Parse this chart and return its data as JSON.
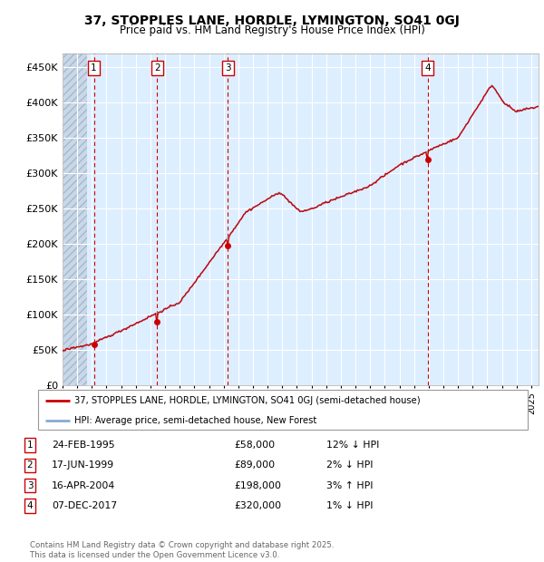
{
  "title1": "37, STOPPLES LANE, HORDLE, LYMINGTON, SO41 0GJ",
  "title2": "Price paid vs. HM Land Registry's House Price Index (HPI)",
  "ylim": [
    0,
    470000
  ],
  "yticks": [
    0,
    50000,
    100000,
    150000,
    200000,
    250000,
    300000,
    350000,
    400000,
    450000
  ],
  "ytick_labels": [
    "£0",
    "£50K",
    "£100K",
    "£150K",
    "£200K",
    "£250K",
    "£300K",
    "£350K",
    "£400K",
    "£450K"
  ],
  "xlim_start": 1993.0,
  "xlim_end": 2025.5,
  "sale_dates": [
    1995.14,
    1999.46,
    2004.29,
    2017.93
  ],
  "sale_prices": [
    58000,
    89000,
    198000,
    320000
  ],
  "sale_labels": [
    "1",
    "2",
    "3",
    "4"
  ],
  "sale_info": [
    {
      "num": "1",
      "date": "24-FEB-1995",
      "price": "£58,000",
      "pct": "12% ↓ HPI"
    },
    {
      "num": "2",
      "date": "17-JUN-1999",
      "price": "£89,000",
      "pct": "2% ↓ HPI"
    },
    {
      "num": "3",
      "date": "16-APR-2004",
      "price": "£198,000",
      "pct": "3% ↑ HPI"
    },
    {
      "num": "4",
      "date": "07-DEC-2017",
      "price": "£320,000",
      "pct": "1% ↓ HPI"
    }
  ],
  "legend_line1": "37, STOPPLES LANE, HORDLE, LYMINGTON, SO41 0GJ (semi-detached house)",
  "legend_line2": "HPI: Average price, semi-detached house, New Forest",
  "footer": "Contains HM Land Registry data © Crown copyright and database right 2025.\nThis data is licensed under the Open Government Licence v3.0.",
  "plot_bg_color": "#ddeeff",
  "grid_color": "#ffffff",
  "line_color_red": "#cc0000",
  "line_color_blue": "#88aad4",
  "sale_marker_color": "#cc0000",
  "dashed_line_color": "#cc0000",
  "box_edge_color": "#cc0000",
  "box_face_color": "#ffffff"
}
